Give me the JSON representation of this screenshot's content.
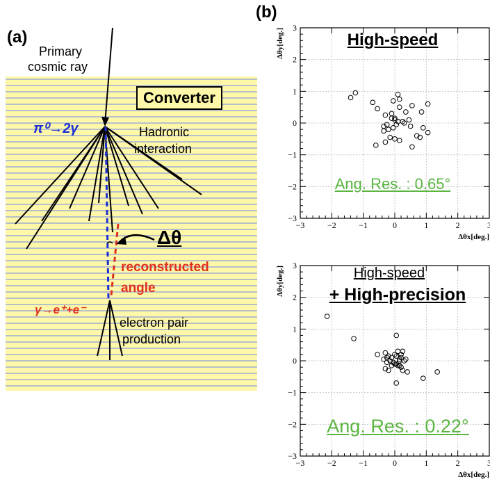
{
  "panel_a": {
    "label": "(a)",
    "primary_label_line1": "Primary",
    "primary_label_line2": "cosmic ray",
    "converter_label": "Converter",
    "pi_decay_label": "π⁰→2γ",
    "hadronic_line1": "Hadronic",
    "hadronic_line2": "interaction",
    "delta_theta_label": "Δθ",
    "reconstructed_line1": "reconstructed",
    "reconstructed_line2": "angle",
    "gamma_pair_label": "γ→e⁺+e⁻",
    "pair_line1": "electron pair",
    "pair_line2": "production",
    "colors": {
      "converter_bg": "#fff8a8",
      "stripe": "#b7bfc9",
      "pi_blue": "#1a2fd6",
      "gamma_red": "#e0301e"
    }
  },
  "panel_b": {
    "label": "(b)",
    "top_plot": {
      "title": "High-speed",
      "resolution_label": "Ang. Res. : 0.65°",
      "xlabel": "Δθx[deg.]",
      "ylabel": "Δθy[deg.]"
    },
    "bottom_plot": {
      "title_line1": "High-speed",
      "title_line2": "+ High-precision",
      "resolution_label": "Ang. Res. : 0.22°",
      "xlabel": "Δθx[deg.]",
      "ylabel": "Δθy[deg.]"
    },
    "green_color": "#5ab541"
  },
  "chart_data": [
    {
      "type": "scatter",
      "title": "High-speed",
      "xlabel": "Δθx[deg.]",
      "ylabel": "Δθy[deg.]",
      "xlim": [
        -3,
        3
      ],
      "ylim": [
        -3,
        3
      ],
      "xticks": [
        "−3",
        "−2",
        "−1",
        "0",
        "1",
        "2",
        "3"
      ],
      "yticks": [
        "−3",
        "−2",
        "−1",
        "0",
        "1",
        "2",
        "3"
      ],
      "grid": true,
      "annotation": "Ang. Res. : 0.65°",
      "x": [
        -1.25,
        -1.4,
        -0.7,
        -0.55,
        -0.3,
        -0.1,
        0.1,
        0.15,
        0.15,
        -0.1,
        0.0,
        0.3,
        0.55,
        0.85,
        1.05,
        -0.6,
        -0.35,
        -0.25,
        -0.2,
        -0.05,
        0.05,
        0.25,
        0.45,
        0.5,
        0.7,
        0.8,
        0.9,
        1.05,
        -0.3,
        -0.15,
        0.0,
        0.15,
        -0.35,
        0.0,
        0.55,
        -0.05,
        0.1,
        0.35
      ],
      "y": [
        0.95,
        0.8,
        0.65,
        0.45,
        0.25,
        0.15,
        0.9,
        0.75,
        0.5,
        0.3,
        0.1,
        0.0,
        0.55,
        0.35,
        0.6,
        -0.7,
        -0.25,
        -0.05,
        -0.2,
        -0.15,
        -0.05,
        0.05,
        0.1,
        -0.1,
        -0.4,
        -0.45,
        -0.15,
        -0.3,
        -0.6,
        -0.45,
        -0.5,
        -0.55,
        -0.1,
        0.15,
        -0.75,
        0.7,
        0.05,
        0.35
      ]
    },
    {
      "type": "scatter",
      "title": "High-speed + High-precision",
      "xlabel": "Δθx[deg.]",
      "ylabel": "Δθy[deg.]",
      "xlim": [
        -3,
        3
      ],
      "ylim": [
        -3,
        3
      ],
      "xticks": [
        "−3",
        "−2",
        "−1",
        "0",
        "1",
        "2",
        "3"
      ],
      "yticks": [
        "−3",
        "−2",
        "−1",
        "0",
        "1",
        "2",
        "3"
      ],
      "grid": true,
      "annotation": "Ang. Res. : 0.22°",
      "x": [
        -2.15,
        -1.3,
        -0.55,
        -0.3,
        -0.2,
        -0.1,
        0.0,
        0.05,
        0.1,
        0.15,
        0.2,
        0.25,
        -0.35,
        -0.25,
        -0.15,
        -0.05,
        0.05,
        0.15,
        0.3,
        -0.3,
        -0.1,
        0.0,
        0.1,
        0.2,
        -0.2,
        0.05,
        0.25,
        0.4,
        0.05,
        0.15,
        0.9,
        1.35,
        0.2,
        -0.25,
        0.35
      ],
      "y": [
        1.4,
        0.7,
        0.2,
        0.25,
        0.15,
        0.1,
        0.2,
        0.15,
        0.3,
        0.05,
        0.1,
        0.3,
        0.05,
        -0.05,
        0.0,
        -0.05,
        -0.1,
        0.0,
        0.0,
        -0.25,
        -0.15,
        -0.1,
        -0.15,
        -0.2,
        -0.3,
        0.8,
        -0.3,
        -0.35,
        -0.7,
        -0.15,
        -0.55,
        -0.35,
        0.2,
        0.1,
        0.05
      ]
    }
  ]
}
